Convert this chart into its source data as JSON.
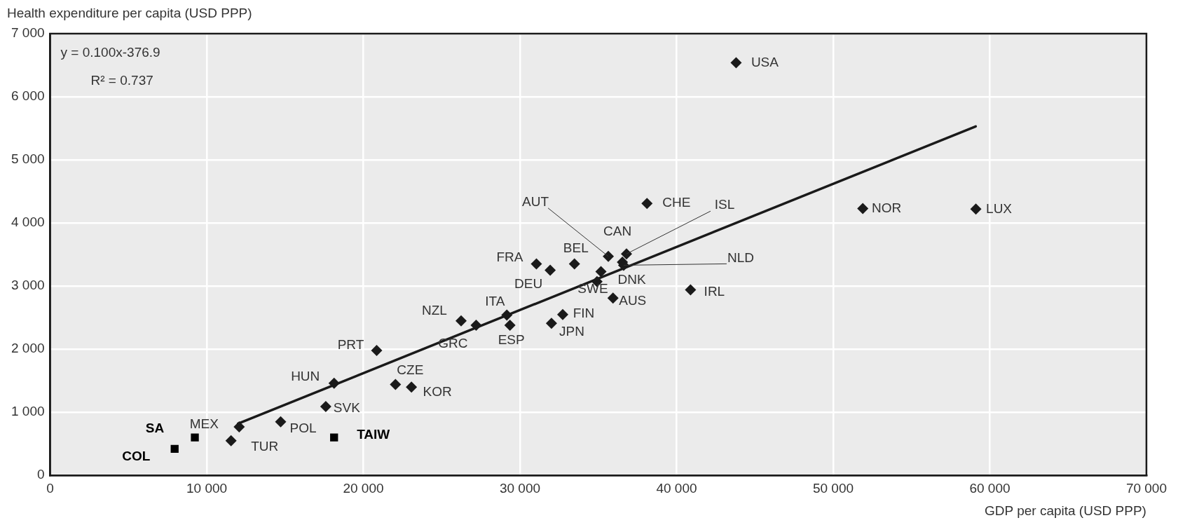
{
  "chart_data": {
    "type": "scatter",
    "xlabel": "GDP per capita (USD PPP)",
    "ylabel": "Health expenditure per capita (USD PPP)",
    "xlim": [
      0,
      70000
    ],
    "xticks": [
      0,
      {
        "value": 10000,
        "label": "10 000"
      },
      {
        "value": 20000,
        "label": "20 000"
      },
      {
        "value": 30000,
        "label": "30 000"
      },
      {
        "value": 40000,
        "label": "40 000"
      },
      {
        "value": 50000,
        "label": "50 000"
      },
      {
        "value": 60000,
        "label": "60 000"
      },
      {
        "value": 70000,
        "label": "70 000"
      }
    ],
    "ylim": [
      0,
      7000
    ],
    "yticks": [
      0,
      {
        "value": 1000,
        "label": "1 000"
      },
      {
        "value": 2000,
        "label": "2 000"
      },
      {
        "value": 3000,
        "label": "3 000"
      },
      {
        "value": 4000,
        "label": "4 000"
      },
      {
        "value": 5000,
        "label": "5 000"
      },
      {
        "value": 6000,
        "label": "6 000"
      },
      {
        "value": 7000,
        "label": "7 000"
      }
    ],
    "grid": true,
    "marker": "diamond",
    "series": [
      {
        "type": "scatter",
        "color": "#1a1a1a",
        "x": [
          43800,
          38110,
          51890,
          59110,
          40890,
          35940,
          32730,
          32010,
          29360,
          29160,
          26240,
          27200,
          20850,
          18130,
          22050,
          23070,
          17600,
          14720,
          11550,
          12070,
          31050,
          31930,
          33480,
          34920,
          35170,
          36540,
          35640,
          36800,
          36620
        ],
        "values": [
          6540,
          4310,
          4230,
          4220,
          2940,
          2810,
          2550,
          2410,
          2380,
          2540,
          2450,
          2380,
          1980,
          1460,
          1440,
          1400,
          1090,
          850,
          550,
          770,
          3350,
          3250,
          3350,
          3070,
          3230,
          3380,
          3470,
          3510,
          3330
        ]
      },
      {
        "type": "scatter",
        "color": "#000000",
        "marker": "square",
        "x": [
          9240,
          7950,
          18130
        ],
        "values": [
          600,
          420,
          600
        ]
      },
      {
        "type": "line",
        "color": "#1a1a1a",
        "marker": "none",
        "x": [
          12000,
          59100
        ],
        "values": [
          820,
          5530
        ]
      }
    ],
    "annotations": [
      "y = 0.100x-376.9",
      "R² = 0.737",
      {
        "text": "USA",
        "x": 43800,
        "y": 6540
      },
      {
        "text": "CHE",
        "x": 38110,
        "y": 4310
      },
      {
        "text": "NOR",
        "x": 51890,
        "y": 4230
      },
      {
        "text": "LUX",
        "x": 59110,
        "y": 4220
      },
      {
        "text": "IRL",
        "x": 40890,
        "y": 2940
      },
      {
        "text": "AUS",
        "x": 35940,
        "y": 2810
      },
      {
        "text": "FIN",
        "x": 32730,
        "y": 2550
      },
      {
        "text": "JPN",
        "x": 32010,
        "y": 2410
      },
      {
        "text": "ESP",
        "x": 29360,
        "y": 2380
      },
      {
        "text": "ITA",
        "x": 29160,
        "y": 2540
      },
      {
        "text": "NZL",
        "x": 26240,
        "y": 2450
      },
      {
        "text": "GRC",
        "x": 27200,
        "y": 2380
      },
      {
        "text": "PRT",
        "x": 20850,
        "y": 1980
      },
      {
        "text": "HUN",
        "x": 18130,
        "y": 1460
      },
      {
        "text": "CZE",
        "x": 22050,
        "y": 1440
      },
      {
        "text": "KOR",
        "x": 23070,
        "y": 1400
      },
      {
        "text": "SVK",
        "x": 17600,
        "y": 1090
      },
      {
        "text": "POL",
        "x": 14720,
        "y": 850
      },
      {
        "text": "TUR",
        "x": 11550,
        "y": 550
      },
      {
        "text": "MEX",
        "x": 12070,
        "y": 770
      },
      {
        "text": "FRA",
        "x": 31050,
        "y": 3350
      },
      {
        "text": "DEU",
        "x": 31930,
        "y": 3250
      },
      {
        "text": "BEL",
        "x": 33480,
        "y": 3350
      },
      {
        "text": "SWE",
        "x": 34920,
        "y": 3070
      },
      {
        "text": "DNK",
        "x": 35170,
        "y": 3230
      },
      {
        "text": "CAN",
        "x": 36540,
        "y": 3380
      },
      {
        "text": "AUT",
        "x": 35640,
        "y": 3470
      },
      {
        "text": "ISL",
        "x": 36800,
        "y": 3510
      },
      {
        "text": "NLD",
        "x": 36620,
        "y": 3330
      },
      {
        "text": "SA",
        "x": 9240,
        "y": 600
      },
      {
        "text": "COL",
        "x": 7950,
        "y": 420
      },
      {
        "text": "TAIW",
        "x": 18130,
        "y": 600
      }
    ]
  }
}
